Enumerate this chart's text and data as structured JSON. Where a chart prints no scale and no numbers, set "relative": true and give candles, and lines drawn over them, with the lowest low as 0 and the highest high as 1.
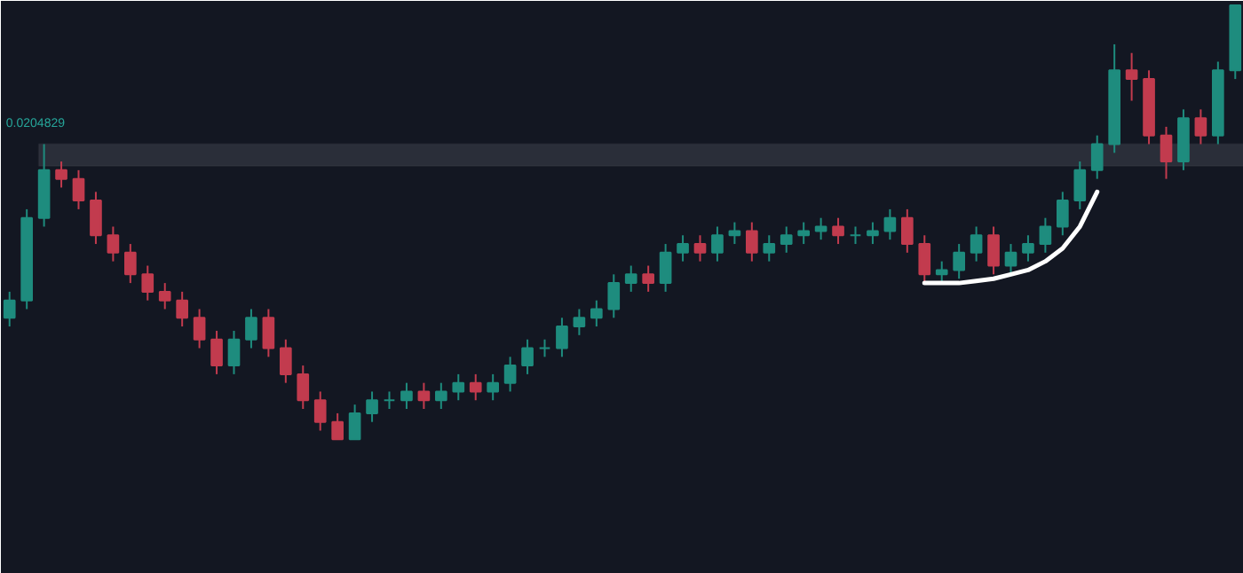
{
  "chart_data": {
    "type": "candlestick",
    "relative": true,
    "grid": false,
    "tick_labels": false,
    "categories": [
      null,
      null,
      null,
      null,
      null,
      null,
      null,
      null,
      null,
      null,
      null,
      null,
      null,
      null,
      null,
      null,
      null,
      null,
      null,
      null,
      null,
      null,
      null,
      null,
      null,
      null,
      null,
      null,
      null,
      null,
      null,
      null,
      null,
      null,
      null,
      null,
      null,
      null,
      null,
      null,
      null,
      null,
      null,
      null,
      null,
      null,
      null,
      null,
      null,
      null,
      null,
      null,
      null,
      null,
      null,
      null,
      null,
      null,
      null,
      null,
      null,
      null,
      null,
      null,
      null,
      null,
      null,
      null,
      null,
      null,
      null,
      null
    ],
    "ohlc": [
      [
        0.28,
        0.34,
        0.26,
        0.32
      ],
      [
        0.32,
        0.53,
        0.3,
        0.51
      ],
      [
        0.51,
        0.68,
        0.49,
        0.62
      ],
      [
        0.62,
        0.64,
        0.58,
        0.6
      ],
      [
        0.6,
        0.62,
        0.53,
        0.55
      ],
      [
        0.55,
        0.57,
        0.45,
        0.47
      ],
      [
        0.47,
        0.49,
        0.41,
        0.43
      ],
      [
        0.43,
        0.45,
        0.36,
        0.38
      ],
      [
        0.38,
        0.4,
        0.32,
        0.34
      ],
      [
        0.34,
        0.36,
        0.3,
        0.32
      ],
      [
        0.32,
        0.34,
        0.26,
        0.28
      ],
      [
        0.28,
        0.3,
        0.21,
        0.23
      ],
      [
        0.23,
        0.25,
        0.15,
        0.17
      ],
      [
        0.17,
        0.25,
        0.15,
        0.23
      ],
      [
        0.23,
        0.3,
        0.21,
        0.28
      ],
      [
        0.28,
        0.3,
        0.19,
        0.21
      ],
      [
        0.21,
        0.23,
        0.13,
        0.15
      ],
      [
        0.15,
        0.17,
        0.07,
        0.09
      ],
      [
        0.09,
        0.11,
        0.02,
        0.04
      ],
      [
        0.04,
        0.06,
        0.0,
        0.0
      ],
      [
        0.0,
        0.08,
        0.0,
        0.06
      ],
      [
        0.06,
        0.11,
        0.04,
        0.09
      ],
      [
        0.09,
        0.11,
        0.07,
        0.09
      ],
      [
        0.09,
        0.13,
        0.07,
        0.11
      ],
      [
        0.11,
        0.13,
        0.07,
        0.09
      ],
      [
        0.09,
        0.13,
        0.07,
        0.11
      ],
      [
        0.11,
        0.15,
        0.09,
        0.13
      ],
      [
        0.13,
        0.15,
        0.09,
        0.11
      ],
      [
        0.11,
        0.15,
        0.09,
        0.13
      ],
      [
        0.13,
        0.19,
        0.11,
        0.17
      ],
      [
        0.17,
        0.23,
        0.15,
        0.21
      ],
      [
        0.21,
        0.23,
        0.19,
        0.21
      ],
      [
        0.21,
        0.28,
        0.19,
        0.26
      ],
      [
        0.26,
        0.3,
        0.24,
        0.28
      ],
      [
        0.28,
        0.32,
        0.26,
        0.3
      ],
      [
        0.3,
        0.38,
        0.28,
        0.36
      ],
      [
        0.36,
        0.4,
        0.34,
        0.38
      ],
      [
        0.38,
        0.4,
        0.34,
        0.36
      ],
      [
        0.36,
        0.45,
        0.34,
        0.43
      ],
      [
        0.43,
        0.47,
        0.41,
        0.45
      ],
      [
        0.45,
        0.47,
        0.41,
        0.43
      ],
      [
        0.43,
        0.49,
        0.41,
        0.47
      ],
      [
        0.47,
        0.5,
        0.45,
        0.48
      ],
      [
        0.48,
        0.5,
        0.41,
        0.43
      ],
      [
        0.43,
        0.47,
        0.41,
        0.45
      ],
      [
        0.45,
        0.49,
        0.43,
        0.47
      ],
      [
        0.47,
        0.5,
        0.45,
        0.48
      ],
      [
        0.48,
        0.51,
        0.46,
        0.49
      ],
      [
        0.49,
        0.51,
        0.45,
        0.47
      ],
      [
        0.47,
        0.49,
        0.45,
        0.47
      ],
      [
        0.47,
        0.5,
        0.45,
        0.48
      ],
      [
        0.48,
        0.53,
        0.46,
        0.51
      ],
      [
        0.51,
        0.53,
        0.43,
        0.45
      ],
      [
        0.45,
        0.47,
        0.36,
        0.38
      ],
      [
        0.38,
        0.41,
        0.36,
        0.39
      ],
      [
        0.39,
        0.45,
        0.37,
        0.43
      ],
      [
        0.43,
        0.49,
        0.41,
        0.47
      ],
      [
        0.47,
        0.49,
        0.38,
        0.4
      ],
      [
        0.4,
        0.45,
        0.38,
        0.43
      ],
      [
        0.43,
        0.47,
        0.41,
        0.45
      ],
      [
        0.45,
        0.51,
        0.43,
        0.49
      ],
      [
        0.49,
        0.57,
        0.47,
        0.55
      ],
      [
        0.55,
        0.64,
        0.53,
        0.62
      ],
      [
        0.62,
        0.7,
        0.6,
        0.68
      ],
      [
        0.68,
        0.91,
        0.66,
        0.85
      ],
      [
        0.85,
        0.89,
        0.78,
        0.83
      ],
      [
        0.83,
        0.85,
        0.68,
        0.7
      ],
      [
        0.7,
        0.72,
        0.6,
        0.64
      ],
      [
        0.64,
        0.76,
        0.62,
        0.74
      ],
      [
        0.74,
        0.76,
        0.68,
        0.7
      ],
      [
        0.7,
        0.87,
        0.68,
        0.85
      ],
      [
        0.85,
        1.0,
        0.83,
        1.0
      ]
    ],
    "colors": [
      "#1e8c7e",
      "#1e8c7e",
      "#1e8c7e",
      "#c23b4e",
      "#c23b4e",
      "#c23b4e",
      "#c23b4e",
      "#c23b4e",
      "#c23b4e",
      "#c23b4e",
      "#c23b4e",
      "#c23b4e",
      "#c23b4e",
      "#1e8c7e",
      "#1e8c7e",
      "#c23b4e",
      "#c23b4e",
      "#c23b4e",
      "#c23b4e",
      "#c23b4e",
      "#1e8c7e",
      "#1e8c7e",
      "#1e8c7e",
      "#1e8c7e",
      "#c23b4e",
      "#1e8c7e",
      "#1e8c7e",
      "#c23b4e",
      "#1e8c7e",
      "#1e8c7e",
      "#1e8c7e",
      "#1e8c7e",
      "#1e8c7e",
      "#1e8c7e",
      "#1e8c7e",
      "#1e8c7e",
      "#1e8c7e",
      "#c23b4e",
      "#1e8c7e",
      "#1e8c7e",
      "#c23b4e",
      "#1e8c7e",
      "#1e8c7e",
      "#c23b4e",
      "#1e8c7e",
      "#1e8c7e",
      "#1e8c7e",
      "#1e8c7e",
      "#c23b4e",
      "#1e8c7e",
      "#1e8c7e",
      "#1e8c7e",
      "#c23b4e",
      "#c23b4e",
      "#1e8c7e",
      "#1e8c7e",
      "#1e8c7e",
      "#c23b4e",
      "#1e8c7e",
      "#1e8c7e",
      "#1e8c7e",
      "#1e8c7e",
      "#1e8c7e",
      "#1e8c7e",
      "#1e8c7e",
      "#c23b4e",
      "#c23b4e",
      "#c23b4e",
      "#1e8c7e",
      "#c23b4e",
      "#1e8c7e",
      "#1e8c7e"
    ],
    "series": [
      {
        "type": "line",
        "color": "#ffffff",
        "values": [
          null,
          null,
          null,
          null,
          null,
          null,
          null,
          null,
          null,
          null,
          null,
          null,
          null,
          null,
          null,
          null,
          null,
          null,
          null,
          null,
          null,
          null,
          null,
          null,
          null,
          null,
          null,
          null,
          null,
          null,
          null,
          null,
          null,
          null,
          null,
          null,
          null,
          null,
          null,
          null,
          null,
          null,
          null,
          null,
          null,
          null,
          null,
          null,
          null,
          null,
          null,
          null,
          null,
          0.36,
          0.36,
          0.36,
          0.365,
          0.37,
          0.38,
          0.39,
          0.41,
          0.44,
          0.49,
          0.57,
          null,
          null,
          null,
          null,
          null,
          null,
          null,
          null
        ]
      }
    ],
    "bands": [
      {
        "axis": "y",
        "from": 0.63,
        "to": 0.68,
        "label": "0.0204829",
        "color": "#2a2e39"
      }
    ]
  }
}
